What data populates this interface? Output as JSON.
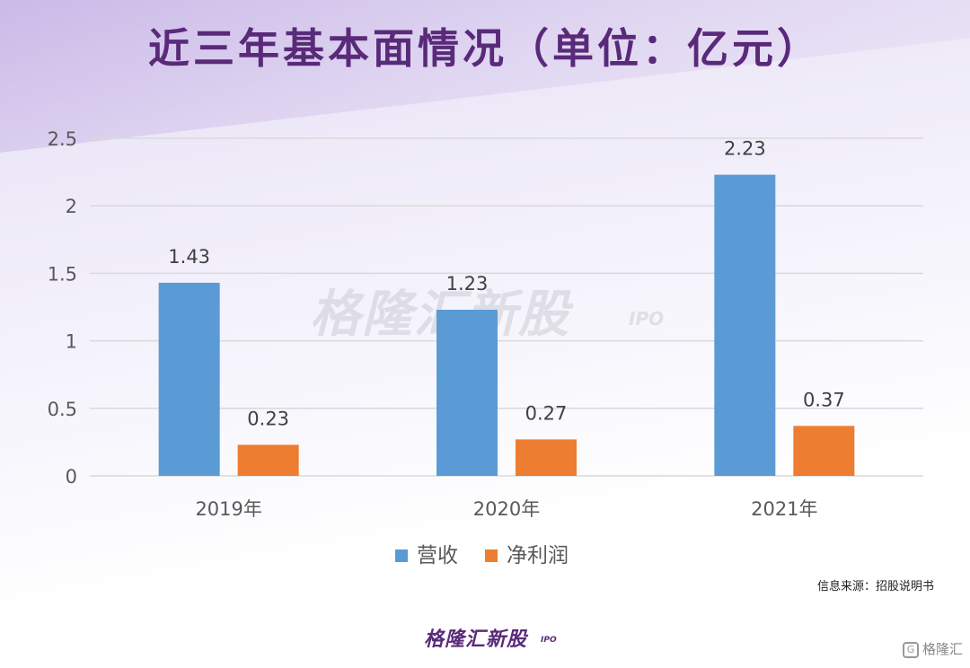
{
  "header": {
    "title": "近三年基本面情况（单位：亿元）"
  },
  "chart_data": {
    "type": "bar",
    "categories": [
      "2019年",
      "2020年",
      "2021年"
    ],
    "series": [
      {
        "name": "营收",
        "values": [
          1.43,
          1.23,
          2.23
        ],
        "color": "#5b9bd5"
      },
      {
        "name": "净利润",
        "values": [
          0.23,
          0.27,
          0.37
        ],
        "color": "#ed7d31"
      }
    ],
    "data_labels": [
      [
        "1.43",
        "1.23",
        "2.23"
      ],
      [
        "0.23",
        "0.27",
        "0.37"
      ]
    ],
    "ylim": [
      0,
      2.5
    ],
    "y_ticks": [
      "0",
      "0.5",
      "1",
      "1.5",
      "2",
      "2.5"
    ],
    "y_tick_values": [
      0,
      0.5,
      1,
      1.5,
      2,
      2.5
    ],
    "grid": true,
    "legend_position": "bottom"
  },
  "watermark": {
    "text": "格隆汇新股",
    "sub": "IPO"
  },
  "footer": {
    "source": "信息来源：招股说明书",
    "brand": "格隆汇新股",
    "brand_sub": "IPO",
    "corner_text": "格隆汇"
  },
  "colors": {
    "title": "#5a2a7a",
    "grid": "#d9d9d9",
    "axis_text": "#595959"
  }
}
